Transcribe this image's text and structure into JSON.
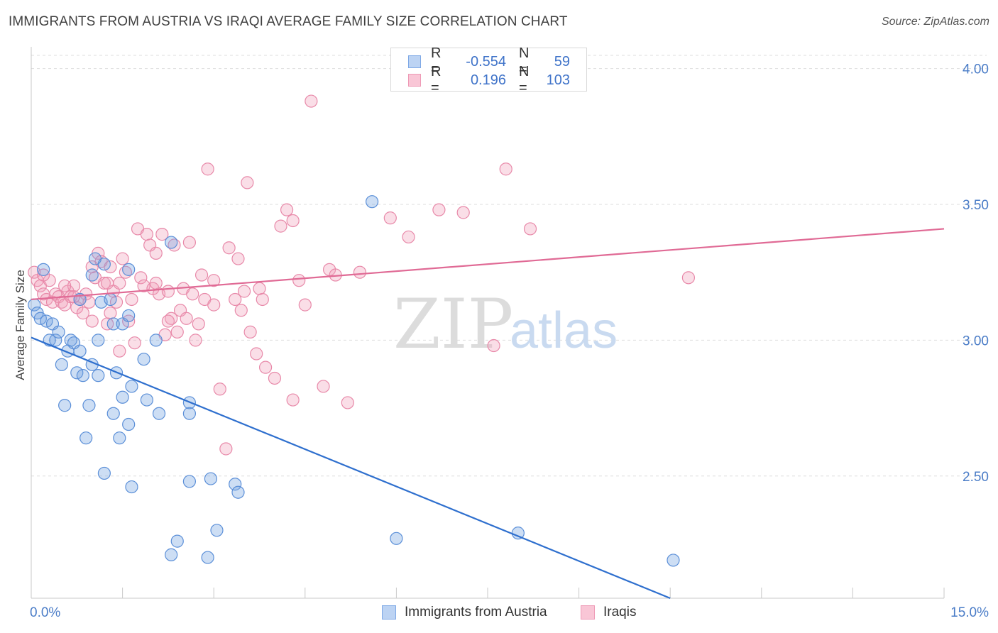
{
  "header": {
    "title": "IMMIGRANTS FROM AUSTRIA VS IRAQI AVERAGE FAMILY SIZE CORRELATION CHART",
    "source": "Source: ZipAtlas.com"
  },
  "legend": {
    "rows": [
      {
        "r_key": "R =",
        "r_value": "-0.554",
        "n_key": "N =",
        "n_value": "59"
      },
      {
        "r_key": "R =",
        "r_value": "0.196",
        "n_key": "N =",
        "n_value": "103"
      }
    ]
  },
  "watermark": {
    "zip": "ZIP",
    "atlas": "atlas"
  },
  "chart_data": {
    "type": "scatter",
    "title": "IMMIGRANTS FROM AUSTRIA VS IRAQI AVERAGE FAMILY SIZE CORRELATION CHART",
    "ylabel": "Average Family Size",
    "xlabel": "",
    "x_tick_labels": [
      "0.0%",
      "15.0%"
    ],
    "y_tick_labels": [
      "4.00",
      "3.50",
      "3.00",
      "2.50"
    ],
    "y_ticks": [
      4.0,
      3.5,
      3.0,
      2.5
    ],
    "xlim": [
      0,
      15
    ],
    "ylim": [
      2.05,
      4.08
    ],
    "grid": true,
    "legend_position": "top-center",
    "colors": {
      "austria": "#6fa0e0",
      "iraqi": "#f0a0bb",
      "austria_line": "#2e6fce",
      "iraqi_line": "#e06a95"
    },
    "series": [
      {
        "name": "Immigrants from Austria",
        "r": -0.554,
        "n": 59,
        "trend": {
          "x": [
            0,
            10.5
          ],
          "y": [
            3.01,
            2.05
          ]
        },
        "points": [
          [
            0.05,
            3.13
          ],
          [
            0.1,
            3.1
          ],
          [
            0.15,
            3.08
          ],
          [
            0.25,
            3.07
          ],
          [
            0.3,
            3.0
          ],
          [
            0.35,
            3.06
          ],
          [
            0.4,
            3.0
          ],
          [
            0.45,
            3.03
          ],
          [
            0.5,
            2.91
          ],
          [
            0.55,
            2.76
          ],
          [
            0.6,
            2.96
          ],
          [
            0.65,
            3.0
          ],
          [
            0.7,
            2.99
          ],
          [
            0.75,
            2.88
          ],
          [
            0.8,
            2.96
          ],
          [
            0.85,
            2.87
          ],
          [
            0.8,
            3.15
          ],
          [
            0.9,
            2.64
          ],
          [
            0.95,
            2.76
          ],
          [
            1.0,
            2.91
          ],
          [
            1.05,
            3.3
          ],
          [
            1.0,
            3.24
          ],
          [
            1.1,
            2.87
          ],
          [
            1.1,
            3.0
          ],
          [
            1.15,
            3.14
          ],
          [
            1.2,
            3.28
          ],
          [
            1.3,
            3.15
          ],
          [
            1.2,
            2.51
          ],
          [
            1.35,
            3.06
          ],
          [
            1.35,
            2.73
          ],
          [
            1.4,
            2.88
          ],
          [
            1.45,
            2.64
          ],
          [
            1.5,
            3.06
          ],
          [
            1.5,
            2.79
          ],
          [
            1.6,
            2.69
          ],
          [
            1.6,
            3.26
          ],
          [
            1.6,
            3.09
          ],
          [
            1.65,
            2.83
          ],
          [
            1.65,
            2.46
          ],
          [
            1.85,
            2.93
          ],
          [
            1.9,
            2.78
          ],
          [
            2.05,
            3.0
          ],
          [
            2.1,
            2.73
          ],
          [
            2.3,
            2.21
          ],
          [
            2.3,
            3.36
          ],
          [
            2.4,
            2.26
          ],
          [
            2.6,
            2.73
          ],
          [
            2.6,
            2.77
          ],
          [
            2.6,
            2.48
          ],
          [
            2.9,
            2.2
          ],
          [
            2.95,
            2.49
          ],
          [
            3.05,
            2.3
          ],
          [
            3.35,
            2.47
          ],
          [
            3.4,
            2.44
          ],
          [
            5.6,
            3.51
          ],
          [
            6.0,
            2.27
          ],
          [
            8.0,
            2.29
          ],
          [
            10.55,
            2.19
          ],
          [
            0.2,
            3.26
          ]
        ]
      },
      {
        "name": "Iraqis",
        "r": 0.196,
        "n": 103,
        "trend": {
          "x": [
            0,
            15
          ],
          "y": [
            3.15,
            3.41
          ]
        },
        "points": [
          [
            0.05,
            3.25
          ],
          [
            0.1,
            3.22
          ],
          [
            0.15,
            3.2
          ],
          [
            0.2,
            3.17
          ],
          [
            0.25,
            3.15
          ],
          [
            0.3,
            3.22
          ],
          [
            0.35,
            3.14
          ],
          [
            0.4,
            3.17
          ],
          [
            0.45,
            3.16
          ],
          [
            0.5,
            3.14
          ],
          [
            0.55,
            3.13
          ],
          [
            0.6,
            3.18
          ],
          [
            0.65,
            3.16
          ],
          [
            0.7,
            3.2
          ],
          [
            0.75,
            3.12
          ],
          [
            0.8,
            3.15
          ],
          [
            0.85,
            3.1
          ],
          [
            0.9,
            3.17
          ],
          [
            0.95,
            3.14
          ],
          [
            1.0,
            3.27
          ],
          [
            1.05,
            3.23
          ],
          [
            1.1,
            3.32
          ],
          [
            1.15,
            3.29
          ],
          [
            1.2,
            3.21
          ],
          [
            1.25,
            3.06
          ],
          [
            1.3,
            3.1
          ],
          [
            1.35,
            3.18
          ],
          [
            1.4,
            3.14
          ],
          [
            1.45,
            3.21
          ],
          [
            1.5,
            3.3
          ],
          [
            1.55,
            3.25
          ],
          [
            1.6,
            3.07
          ],
          [
            1.65,
            3.15
          ],
          [
            1.7,
            2.99
          ],
          [
            1.75,
            3.41
          ],
          [
            1.8,
            3.23
          ],
          [
            1.85,
            3.2
          ],
          [
            1.9,
            3.39
          ],
          [
            1.95,
            3.35
          ],
          [
            2.0,
            3.19
          ],
          [
            2.05,
            3.32
          ],
          [
            2.1,
            3.17
          ],
          [
            2.15,
            3.39
          ],
          [
            2.2,
            3.02
          ],
          [
            2.25,
            3.18
          ],
          [
            2.3,
            3.08
          ],
          [
            2.35,
            3.35
          ],
          [
            2.4,
            3.03
          ],
          [
            2.45,
            3.11
          ],
          [
            2.5,
            3.19
          ],
          [
            2.55,
            3.08
          ],
          [
            2.6,
            3.36
          ],
          [
            2.65,
            3.17
          ],
          [
            2.7,
            3.0
          ],
          [
            2.75,
            3.06
          ],
          [
            2.8,
            3.24
          ],
          [
            2.85,
            3.15
          ],
          [
            2.9,
            3.63
          ],
          [
            3.0,
            3.22
          ],
          [
            3.1,
            2.82
          ],
          [
            3.2,
            2.6
          ],
          [
            3.25,
            3.34
          ],
          [
            3.35,
            3.15
          ],
          [
            3.4,
            3.3
          ],
          [
            3.5,
            3.18
          ],
          [
            3.55,
            3.58
          ],
          [
            3.6,
            3.03
          ],
          [
            3.7,
            2.95
          ],
          [
            3.75,
            3.19
          ],
          [
            3.8,
            3.15
          ],
          [
            3.85,
            2.9
          ],
          [
            4.0,
            2.86
          ],
          [
            4.1,
            3.42
          ],
          [
            4.2,
            3.48
          ],
          [
            4.3,
            3.44
          ],
          [
            4.4,
            3.22
          ],
          [
            4.5,
            3.13
          ],
          [
            4.6,
            3.88
          ],
          [
            4.8,
            2.83
          ],
          [
            4.9,
            3.26
          ],
          [
            5.0,
            3.24
          ],
          [
            5.2,
            2.77
          ],
          [
            5.4,
            3.25
          ],
          [
            5.9,
            3.45
          ],
          [
            6.2,
            3.38
          ],
          [
            6.7,
            3.48
          ],
          [
            7.1,
            3.47
          ],
          [
            7.6,
            2.98
          ],
          [
            7.8,
            3.63
          ],
          [
            8.2,
            3.41
          ],
          [
            10.8,
            3.23
          ],
          [
            1.3,
            3.27
          ],
          [
            2.25,
            3.07
          ],
          [
            1.0,
            3.07
          ],
          [
            0.55,
            3.2
          ],
          [
            3.0,
            3.13
          ],
          [
            1.45,
            2.96
          ],
          [
            3.45,
            3.11
          ],
          [
            2.05,
            3.21
          ],
          [
            0.2,
            3.24
          ],
          [
            1.25,
            3.21
          ],
          [
            0.7,
            3.16
          ],
          [
            4.3,
            2.78
          ]
        ]
      }
    ]
  },
  "bottom_legend": {
    "items": [
      {
        "label": "Immigrants from Austria"
      },
      {
        "label": "Iraqis"
      }
    ]
  }
}
